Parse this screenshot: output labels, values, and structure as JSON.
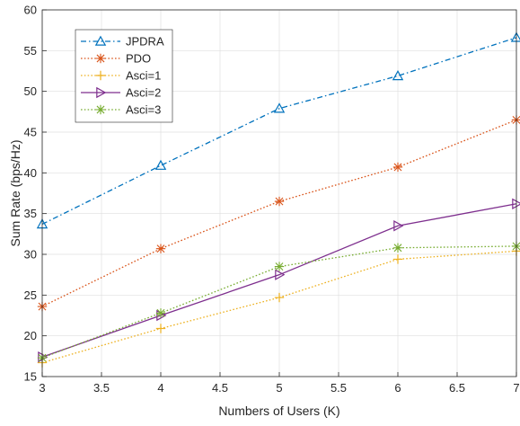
{
  "chart_data": {
    "type": "line",
    "title": "",
    "xlabel": "Numbers of Users (K)",
    "ylabel": "Sum Rate (bps/Hz)",
    "xlim": [
      3,
      7
    ],
    "ylim": [
      15,
      60
    ],
    "xticks": [
      "3",
      "3.5",
      "4",
      "4.5",
      "5",
      "5.5",
      "6",
      "6.5",
      "7"
    ],
    "yticks": [
      "15",
      "20",
      "25",
      "30",
      "35",
      "40",
      "45",
      "50",
      "55",
      "60"
    ],
    "grid": true,
    "legend_position": "top-left",
    "x": [
      3,
      4,
      5,
      6,
      7
    ],
    "series": [
      {
        "name": "JPDRA",
        "values": [
          33.7,
          40.9,
          47.9,
          51.9,
          56.6
        ],
        "color": "#0072BD",
        "dash": "dash-dot",
        "marker": "triangle-up"
      },
      {
        "name": "PDO",
        "values": [
          23.6,
          30.7,
          36.5,
          40.7,
          46.5
        ],
        "color": "#D95319",
        "dash": "dotted",
        "marker": "asterisk"
      },
      {
        "name": "Asci=1",
        "values": [
          16.7,
          20.9,
          24.7,
          29.4,
          30.4
        ],
        "color": "#EDB120",
        "dash": "dotted",
        "marker": "plus"
      },
      {
        "name": "Asci=2",
        "values": [
          17.4,
          22.5,
          27.5,
          33.5,
          36.2
        ],
        "color": "#7E2F8E",
        "dash": "solid",
        "marker": "triangle-right"
      },
      {
        "name": "Asci=3",
        "values": [
          17.3,
          22.8,
          28.5,
          30.8,
          31.0
        ],
        "color": "#77AC30",
        "dash": "dotted",
        "marker": "asterisk"
      }
    ]
  }
}
